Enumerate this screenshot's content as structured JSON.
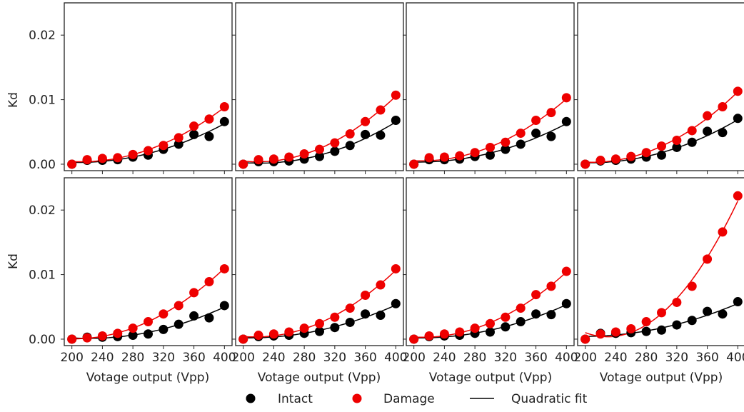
{
  "figure": {
    "ylabel": "Kd",
    "xlabel": "Votage output (Vpp)",
    "legend": {
      "intact_label": "Intact",
      "damage_label": "Damage",
      "fit_label": "Quadratic fit"
    },
    "colors": {
      "intact": "#000000",
      "damage": "#ee0000"
    }
  },
  "chart_data": [
    {
      "type": "scatter",
      "panel": "row1-col1",
      "x": [
        200,
        220,
        240,
        260,
        280,
        300,
        320,
        340,
        360,
        380,
        400
      ],
      "xlim": [
        190,
        410
      ],
      "ylim": [
        -0.001,
        0.025
      ],
      "xticks": [
        200,
        240,
        280,
        320,
        360,
        400
      ],
      "yticks": [
        0.0,
        0.01,
        0.02
      ],
      "ytick_labels": [
        "0.00",
        "0.01",
        "0.02"
      ],
      "series": [
        {
          "name": "Intact",
          "values": [
            0.0,
            0.0006,
            0.0006,
            0.0007,
            0.0011,
            0.0014,
            0.0023,
            0.0031,
            0.0046,
            0.0043,
            0.0066
          ]
        },
        {
          "name": "Damage",
          "values": [
            0.0,
            0.0007,
            0.0009,
            0.001,
            0.0015,
            0.0021,
            0.0029,
            0.0041,
            0.0059,
            0.007,
            0.0089
          ]
        }
      ]
    },
    {
      "type": "scatter",
      "panel": "row1-col2",
      "x": [
        200,
        220,
        240,
        260,
        280,
        300,
        320,
        340,
        360,
        380,
        400
      ],
      "xlim": [
        190,
        410
      ],
      "ylim": [
        -0.001,
        0.025
      ],
      "xticks": [
        200,
        240,
        280,
        320,
        360,
        400
      ],
      "yticks": [
        0.0,
        0.01,
        0.02
      ],
      "series": [
        {
          "name": "Intact",
          "values": [
            0.0,
            0.0004,
            0.0004,
            0.0005,
            0.0008,
            0.0012,
            0.002,
            0.0029,
            0.0046,
            0.0045,
            0.0068
          ]
        },
        {
          "name": "Damage",
          "values": [
            0.0,
            0.0007,
            0.0008,
            0.0011,
            0.0016,
            0.0023,
            0.0033,
            0.0047,
            0.0066,
            0.0084,
            0.0107
          ]
        }
      ]
    },
    {
      "type": "scatter",
      "panel": "row1-col3",
      "x": [
        200,
        220,
        240,
        260,
        280,
        300,
        320,
        340,
        360,
        380,
        400
      ],
      "xlim": [
        190,
        410
      ],
      "ylim": [
        -0.001,
        0.025
      ],
      "xticks": [
        200,
        240,
        280,
        320,
        360,
        400
      ],
      "yticks": [
        0.0,
        0.01,
        0.02
      ],
      "series": [
        {
          "name": "Intact",
          "values": [
            0.0,
            0.0007,
            0.0007,
            0.0008,
            0.0012,
            0.0014,
            0.0023,
            0.0031,
            0.0048,
            0.0043,
            0.0066
          ]
        },
        {
          "name": "Damage",
          "values": [
            0.0,
            0.001,
            0.0011,
            0.0013,
            0.0018,
            0.0026,
            0.0034,
            0.0048,
            0.0068,
            0.008,
            0.0103
          ]
        }
      ]
    },
    {
      "type": "scatter",
      "panel": "row1-col4",
      "x": [
        200,
        220,
        240,
        260,
        280,
        300,
        320,
        340,
        360,
        380,
        400
      ],
      "xlim": [
        190,
        410
      ],
      "ylim": [
        -0.001,
        0.025
      ],
      "xticks": [
        200,
        240,
        280,
        320,
        360,
        400
      ],
      "yticks": [
        0.0,
        0.01,
        0.02
      ],
      "series": [
        {
          "name": "Intact",
          "values": [
            0.0,
            0.0005,
            0.0006,
            0.0008,
            0.0011,
            0.0014,
            0.0026,
            0.0034,
            0.0051,
            0.0049,
            0.0071
          ]
        },
        {
          "name": "Damage",
          "values": [
            0.0,
            0.0006,
            0.0008,
            0.0012,
            0.0018,
            0.0028,
            0.0037,
            0.0052,
            0.0075,
            0.0089,
            0.0113
          ]
        }
      ]
    },
    {
      "type": "scatter",
      "panel": "row2-col1",
      "x": [
        200,
        220,
        240,
        260,
        280,
        300,
        320,
        340,
        360,
        380,
        400
      ],
      "xlim": [
        190,
        410
      ],
      "ylim": [
        -0.001,
        0.025
      ],
      "xticks": [
        200,
        240,
        280,
        320,
        360,
        400
      ],
      "yticks": [
        0.0,
        0.01,
        0.02
      ],
      "xtick_labels": [
        "200",
        "240",
        "280",
        "320",
        "360",
        "400"
      ],
      "ytick_labels": [
        "0.00",
        "0.01",
        "0.02"
      ],
      "series": [
        {
          "name": "Intact",
          "values": [
            0.0,
            0.0003,
            0.0003,
            0.0004,
            0.0006,
            0.0008,
            0.0015,
            0.0023,
            0.0036,
            0.0033,
            0.0052
          ]
        },
        {
          "name": "Damage",
          "values": [
            0.0,
            0.0002,
            0.0005,
            0.0009,
            0.0017,
            0.0027,
            0.0039,
            0.0052,
            0.0072,
            0.0089,
            0.0109
          ]
        }
      ]
    },
    {
      "type": "scatter",
      "panel": "row2-col2",
      "x": [
        200,
        220,
        240,
        260,
        280,
        300,
        320,
        340,
        360,
        380,
        400
      ],
      "xlim": [
        190,
        410
      ],
      "ylim": [
        -0.001,
        0.025
      ],
      "xticks": [
        200,
        240,
        280,
        320,
        360,
        400
      ],
      "yticks": [
        0.0,
        0.01,
        0.02
      ],
      "xtick_labels": [
        "200",
        "240",
        "280",
        "320",
        "360",
        "400"
      ],
      "series": [
        {
          "name": "Intact",
          "values": [
            0.0,
            0.0004,
            0.0005,
            0.0006,
            0.0009,
            0.0012,
            0.0018,
            0.0026,
            0.0039,
            0.0037,
            0.0055
          ]
        },
        {
          "name": "Damage",
          "values": [
            0.0,
            0.0006,
            0.0008,
            0.0011,
            0.0017,
            0.0024,
            0.0034,
            0.0048,
            0.0068,
            0.0084,
            0.0109
          ]
        }
      ]
    },
    {
      "type": "scatter",
      "panel": "row2-col3",
      "x": [
        200,
        220,
        240,
        260,
        280,
        300,
        320,
        340,
        360,
        380,
        400
      ],
      "xlim": [
        190,
        410
      ],
      "ylim": [
        -0.001,
        0.025
      ],
      "xticks": [
        200,
        240,
        280,
        320,
        360,
        400
      ],
      "yticks": [
        0.0,
        0.01,
        0.02
      ],
      "xtick_labels": [
        "200",
        "240",
        "280",
        "320",
        "360",
        "400"
      ],
      "series": [
        {
          "name": "Intact",
          "values": [
            0.0,
            0.0004,
            0.0005,
            0.0006,
            0.0009,
            0.0011,
            0.0019,
            0.0027,
            0.0039,
            0.0038,
            0.0055
          ]
        },
        {
          "name": "Damage",
          "values": [
            0.0,
            0.0005,
            0.0008,
            0.0011,
            0.0017,
            0.0024,
            0.0034,
            0.0048,
            0.0069,
            0.0082,
            0.0105
          ]
        }
      ]
    },
    {
      "type": "scatter",
      "panel": "row2-col4",
      "x": [
        200,
        220,
        240,
        260,
        280,
        300,
        320,
        340,
        360,
        380,
        400
      ],
      "xlim": [
        190,
        410
      ],
      "ylim": [
        -0.001,
        0.025
      ],
      "xticks": [
        200,
        240,
        280,
        320,
        360,
        400
      ],
      "yticks": [
        0.0,
        0.01,
        0.02
      ],
      "xtick_labels": [
        "200",
        "240",
        "280",
        "320",
        "360",
        "400"
      ],
      "series": [
        {
          "name": "Intact",
          "values": [
            0.0,
            0.0009,
            0.0009,
            0.001,
            0.0012,
            0.0014,
            0.0022,
            0.0029,
            0.0043,
            0.0039,
            0.0058
          ]
        },
        {
          "name": "Damage",
          "values": [
            0.0,
            0.0008,
            0.0011,
            0.0016,
            0.0027,
            0.0041,
            0.0057,
            0.0082,
            0.0124,
            0.0166,
            0.0222
          ]
        }
      ]
    }
  ]
}
